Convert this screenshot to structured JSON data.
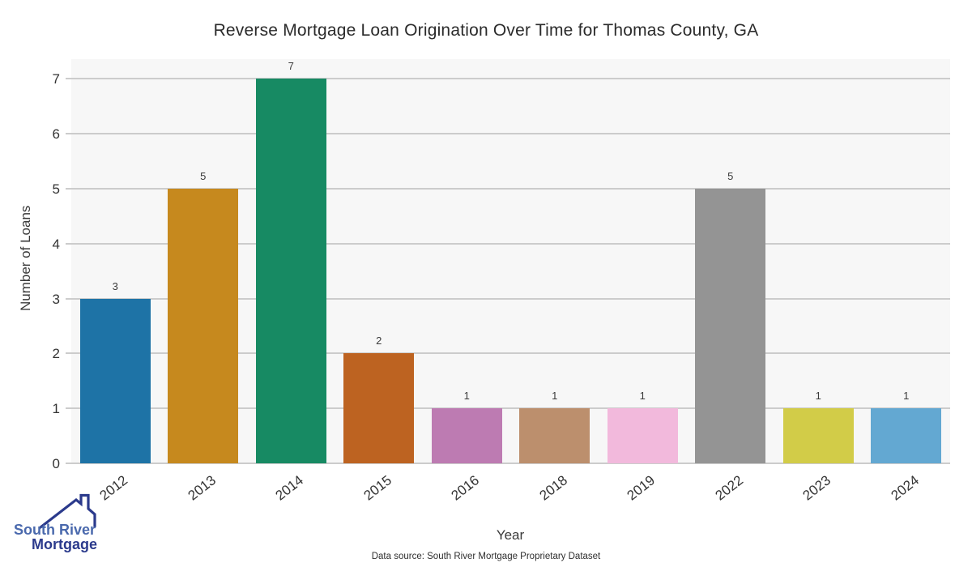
{
  "chart_data": {
    "type": "bar",
    "title": "Reverse Mortgage Loan Origination Over Time for Thomas County, GA",
    "xlabel": "Year",
    "ylabel": "Number of Loans",
    "categories": [
      "2012",
      "2013",
      "2014",
      "2015",
      "2016",
      "2018",
      "2019",
      "2022",
      "2023",
      "2024"
    ],
    "values": [
      3,
      5,
      7,
      2,
      1,
      1,
      1,
      5,
      1,
      1
    ],
    "bar_colors": [
      "#1e73a6",
      "#c6891e",
      "#178a63",
      "#bd6321",
      "#bd7bb2",
      "#bc8f6d",
      "#f2b9dc",
      "#949494",
      "#d2cc48",
      "#63a8d2"
    ],
    "yticks": [
      0,
      1,
      2,
      3,
      4,
      5,
      6,
      7
    ],
    "ylim": [
      0,
      7.36
    ],
    "grid": true,
    "legend": "none",
    "plot_background": "#f7f7f7",
    "gridline_color": "#cccccc",
    "tick_color": "#333333"
  },
  "footer": {
    "source_text": "Data source: South River Mortgage Proprietary Dataset"
  },
  "logo": {
    "line1": "South River",
    "line2": "Mortgage",
    "line1_color": "#4a69ad",
    "line2_color": "#2b3a8c",
    "roof_color": "#2b3a8c",
    "name": "South River Mortgage logo"
  }
}
